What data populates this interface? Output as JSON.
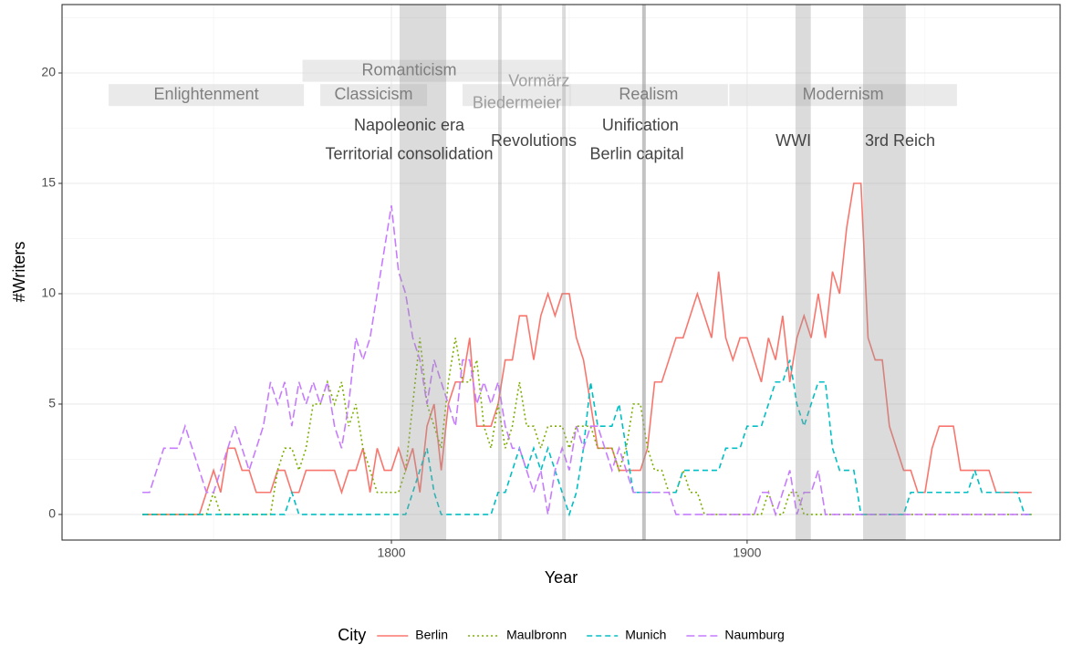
{
  "chart_data": {
    "type": "line",
    "x_label": "Year",
    "y_label": "#Writers",
    "legend_title": "City",
    "legend_position": "bottom",
    "grid": true,
    "xlim": [
      1707.4,
      1988
    ],
    "ylim": [
      -1.16,
      23.1
    ],
    "xticks": [
      1800,
      1900
    ],
    "yticks": [
      0,
      5,
      10,
      15,
      20
    ],
    "xminor": [
      1750,
      1850,
      1950
    ],
    "yminor": [
      2.5,
      7.5,
      12.5,
      17.5,
      22.5
    ],
    "x": [
      1730,
      1732,
      1734,
      1736,
      1738,
      1740,
      1742,
      1744,
      1746,
      1748,
      1750,
      1752,
      1754,
      1756,
      1758,
      1760,
      1762,
      1764,
      1766,
      1768,
      1770,
      1772,
      1774,
      1776,
      1778,
      1780,
      1782,
      1784,
      1786,
      1788,
      1790,
      1792,
      1794,
      1796,
      1798,
      1800,
      1802,
      1804,
      1806,
      1808,
      1810,
      1812,
      1814,
      1816,
      1818,
      1820,
      1822,
      1824,
      1826,
      1828,
      1830,
      1832,
      1834,
      1836,
      1838,
      1840,
      1842,
      1844,
      1846,
      1848,
      1850,
      1852,
      1854,
      1856,
      1858,
      1860,
      1862,
      1864,
      1866,
      1868,
      1870,
      1872,
      1874,
      1876,
      1878,
      1880,
      1882,
      1884,
      1886,
      1888,
      1890,
      1892,
      1894,
      1896,
      1898,
      1900,
      1902,
      1904,
      1906,
      1908,
      1910,
      1912,
      1914,
      1916,
      1918,
      1920,
      1922,
      1924,
      1926,
      1928,
      1930,
      1932,
      1934,
      1936,
      1938,
      1940,
      1942,
      1944,
      1946,
      1948,
      1950,
      1952,
      1954,
      1956,
      1958,
      1960,
      1962,
      1964,
      1966,
      1968,
      1970,
      1972,
      1974,
      1976,
      1978,
      1980
    ],
    "series": [
      {
        "name": "Berlin",
        "color": "#F8766D",
        "dash": "",
        "values": [
          0,
          0,
          0,
          0,
          0,
          0,
          0,
          0,
          0,
          1,
          2,
          1,
          3,
          3,
          2,
          2,
          1,
          1,
          1,
          2,
          2,
          1,
          1,
          2,
          2,
          2,
          2,
          2,
          1,
          2,
          2,
          3,
          1,
          3,
          2,
          2,
          3,
          2,
          3,
          1,
          4,
          5,
          2,
          5,
          6,
          6,
          8,
          4,
          4,
          4,
          5,
          7,
          7,
          9,
          9,
          7,
          9,
          10,
          9,
          10,
          10,
          8,
          7,
          5,
          3,
          3,
          3,
          2,
          2,
          2,
          2,
          3,
          6,
          6,
          7,
          8,
          8,
          9,
          10,
          9,
          8,
          11,
          8,
          7,
          8,
          8,
          7,
          6,
          8,
          7,
          9,
          6,
          8,
          9,
          8,
          10,
          8,
          11,
          10,
          13,
          15,
          15,
          8,
          7,
          7,
          4,
          3,
          2,
          2,
          1,
          1,
          3,
          4,
          4,
          4,
          2,
          2,
          2,
          2,
          2,
          1,
          1,
          1,
          1,
          1,
          1
        ]
      },
      {
        "name": "Maulbronn",
        "color": "#7CAE00",
        "dash": "2,3",
        "values": [
          0,
          0,
          0,
          0,
          0,
          0,
          0,
          0,
          0,
          0,
          1,
          0,
          0,
          0,
          0,
          0,
          0,
          0,
          0,
          2,
          3,
          3,
          2,
          3,
          5,
          5,
          6,
          5,
          6,
          4,
          5,
          3,
          2,
          1,
          1,
          1,
          1,
          2,
          5,
          8,
          5,
          4,
          3,
          6,
          8,
          6,
          6,
          7,
          4,
          3,
          5,
          3,
          4,
          6,
          4,
          4,
          3,
          4,
          4,
          4,
          3,
          4,
          4,
          4,
          3,
          3,
          3,
          2,
          3,
          5,
          5,
          3,
          2,
          2,
          1,
          1,
          2,
          1,
          1,
          0,
          0,
          0,
          0,
          0,
          0,
          0,
          0,
          0,
          1,
          0,
          0,
          1,
          1,
          0,
          0,
          0,
          0,
          0,
          0,
          0,
          0,
          0,
          0,
          0,
          0,
          0,
          0,
          0,
          0,
          0,
          0,
          0,
          0,
          0,
          0,
          0,
          0,
          0,
          0,
          0,
          0,
          0,
          0,
          0,
          0,
          0
        ]
      },
      {
        "name": "Munich",
        "color": "#00BFC4",
        "dash": "6,4",
        "values": [
          0,
          0,
          0,
          0,
          0,
          0,
          0,
          0,
          0,
          0,
          0,
          0,
          0,
          0,
          0,
          0,
          0,
          0,
          0,
          0,
          0,
          1,
          0,
          0,
          0,
          0,
          0,
          0,
          0,
          0,
          0,
          0,
          0,
          0,
          0,
          0,
          0,
          0,
          1,
          2,
          3,
          1,
          0,
          0,
          0,
          0,
          0,
          0,
          0,
          0,
          1,
          1,
          2,
          3,
          2,
          3,
          2,
          3,
          2,
          1,
          0,
          1,
          3,
          6,
          4,
          4,
          4,
          5,
          3,
          1,
          1,
          1,
          1,
          1,
          1,
          1,
          2,
          2,
          2,
          2,
          2,
          2,
          3,
          3,
          3,
          4,
          4,
          4,
          5,
          6,
          6,
          7,
          5,
          4,
          5,
          6,
          6,
          3,
          2,
          2,
          2,
          0,
          0,
          0,
          0,
          0,
          0,
          0,
          1,
          1,
          1,
          1,
          1,
          1,
          1,
          1,
          1,
          2,
          1,
          1,
          1,
          1,
          1,
          1,
          0,
          0
        ]
      },
      {
        "name": "Naumburg",
        "color": "#C77CFF",
        "dash": "9,4",
        "values": [
          1,
          1,
          2,
          3,
          3,
          3,
          4,
          3,
          2,
          1,
          1,
          2,
          3,
          4,
          3,
          2,
          3,
          4,
          6,
          5,
          6,
          4,
          6,
          5,
          6,
          5,
          6,
          4,
          3,
          5,
          8,
          7,
          8,
          10,
          12,
          14,
          11,
          10,
          8,
          7,
          5,
          7,
          6,
          5,
          4,
          7,
          7,
          5,
          6,
          5,
          6,
          4,
          3,
          3,
          2,
          1,
          2,
          0,
          2,
          3,
          2,
          4,
          3,
          4,
          4,
          3,
          2,
          3,
          2,
          1,
          1,
          1,
          1,
          1,
          1,
          0,
          0,
          0,
          0,
          0,
          0,
          0,
          0,
          0,
          0,
          0,
          0,
          1,
          1,
          0,
          1,
          2,
          0,
          1,
          1,
          2,
          0,
          0,
          0,
          0,
          0,
          0,
          0,
          0,
          0,
          0,
          0,
          0,
          0,
          0,
          0,
          0,
          0,
          0,
          0,
          0,
          0,
          0,
          0,
          0,
          0,
          0,
          0,
          0,
          0,
          0
        ]
      }
    ],
    "eras": [
      {
        "label": "Enlightenment",
        "start": 1720.5,
        "end": 1775.4,
        "color": "#7f7f7f"
      },
      {
        "label": "Romanticism",
        "start": 1775,
        "end": 1835,
        "color": "#7f7f7f"
      },
      {
        "label": "Classicism",
        "start": 1780,
        "end": 1810,
        "color": "#7f7f7f"
      },
      {
        "label": "Vormärz",
        "start": 1835,
        "end": 1848,
        "color": "#9e9e9e"
      },
      {
        "label": "Biedermeier",
        "start": 1820,
        "end": 1850.5,
        "color": "#9e9e9e"
      },
      {
        "label": "Realism",
        "start": 1850,
        "end": 1894.6,
        "color": "#7f7f7f"
      },
      {
        "label": "Modernism",
        "start": 1895,
        "end": 1959,
        "color": "#7f7f7f"
      }
    ],
    "events": [
      {
        "label": "Napoleonic era",
        "start": 1802.3,
        "end": 1815.4
      },
      {
        "label": "Territorial consolidation",
        "start": 1830,
        "end": 1831
      },
      {
        "label": "Revolutions",
        "start": 1848,
        "end": 1849
      },
      {
        "label": "Unification",
        "start": 1870.5,
        "end": 1871.5
      },
      {
        "label": "Berlin capital",
        "start": 1870.5,
        "end": 1871.5
      },
      {
        "label": "WWI",
        "start": 1913.6,
        "end": 1917.9
      },
      {
        "label": "3rd Reich",
        "start": 1932.6,
        "end": 1944.6
      }
    ]
  }
}
